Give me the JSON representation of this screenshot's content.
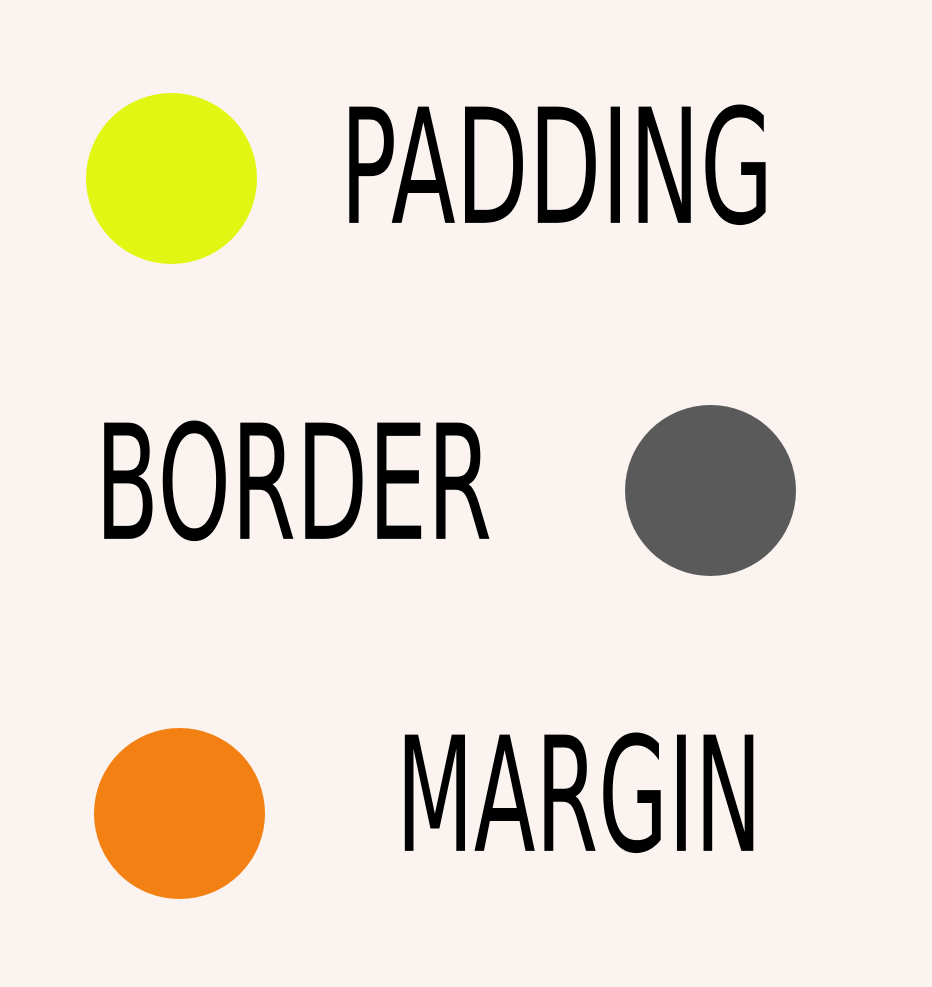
{
  "items": [
    {
      "label": "PADDING",
      "color": "#e1f713",
      "shape": "circle"
    },
    {
      "label": "BORDER",
      "color": "#5a5a5a",
      "shape": "circle"
    },
    {
      "label": "MARGIN",
      "color": "#f38012",
      "shape": "circle"
    }
  ]
}
